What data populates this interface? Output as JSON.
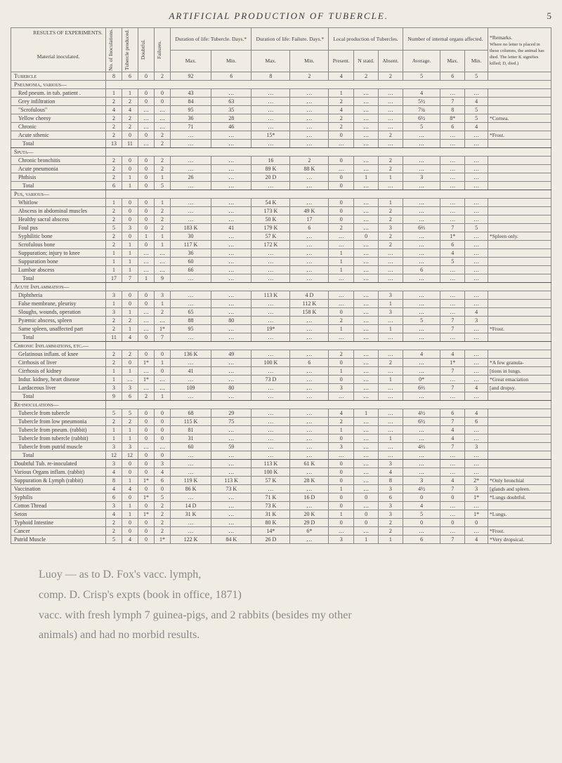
{
  "page": {
    "running_head": "ARTIFICIAL PRODUCTION OF TUBERCLE.",
    "page_number": "5",
    "table_title": "RESULTS OF EXPERIMENTS.",
    "remarks_head": "*Remarks.",
    "remarks_note": "Where no letter is placed in these columns, the animal has died. The letter K signifies killed; D, died.)"
  },
  "headers": {
    "material": "Material inoculated.",
    "inoc": "No. of Inoculations.",
    "tub": "Tubercle produced.",
    "doubt": "Doubtful.",
    "fail": "Failures.",
    "dur_tub": "Duration of life: Tubercle. Days.*",
    "dur_fail": "Duration of life: Failure. Days.*",
    "local": "Local production of Tubercles.",
    "internal": "Number of internal organs affected.",
    "max": "Max.",
    "min": "Min.",
    "present": "Present.",
    "nstat": "N statd.",
    "absent": "Absent.",
    "avg": "Average."
  },
  "rows": [
    {
      "t": "g",
      "l": "Tubercle",
      "c": [
        "8",
        "6",
        "0",
        "2",
        "92",
        "6",
        "8",
        "2",
        "4",
        "2",
        "2",
        "5",
        "6",
        "5",
        ""
      ]
    },
    {
      "t": "g",
      "l": "Pneumonia, various—"
    },
    {
      "t": "i",
      "l": "Red pneum. in tub. patient .",
      "c": [
        "1",
        "1",
        "0",
        "0",
        "43",
        "…",
        "…",
        "…",
        "1",
        "…",
        "…",
        "4",
        "…",
        "…",
        ""
      ]
    },
    {
      "t": "i",
      "l": "Grey infiltration",
      "c": [
        "2",
        "2",
        "0",
        "0",
        "84",
        "63",
        "…",
        "…",
        "2",
        "…",
        "…",
        "5½",
        "7",
        "4",
        ""
      ]
    },
    {
      "t": "i",
      "l": "\"Scrofulous\"",
      "c": [
        "4",
        "4",
        "…",
        "…",
        "95",
        "35",
        "…",
        "…",
        "4",
        "…",
        "…",
        "7¾",
        "8",
        "5",
        ""
      ]
    },
    {
      "t": "i",
      "l": "Yellow cheesy",
      "c": [
        "2",
        "2",
        "…",
        "…",
        "36",
        "28",
        "…",
        "…",
        "2",
        "…",
        "…",
        "6½",
        "8*",
        "5",
        "*Cornea."
      ]
    },
    {
      "t": "i",
      "l": "Chronic",
      "c": [
        "2",
        "2",
        "…",
        "…",
        "71",
        "46",
        "…",
        "…",
        "2",
        "…",
        "…",
        "5",
        "6",
        "4",
        ""
      ]
    },
    {
      "t": "i",
      "l": "Acute sthenic",
      "c": [
        "2",
        "0",
        "0",
        "2",
        "…",
        "…",
        "15*",
        "…",
        "0",
        "…",
        "2",
        "…",
        "…",
        "…",
        "*Frost."
      ]
    },
    {
      "t": "tot",
      "l": "Total",
      "c": [
        "13",
        "11",
        "…",
        "2",
        "…",
        "…",
        "…",
        "…",
        "…",
        "…",
        "…",
        "…",
        "…",
        "…",
        ""
      ]
    },
    {
      "t": "g",
      "l": "Sputa—"
    },
    {
      "t": "i",
      "l": "Chronic bronchitis",
      "c": [
        "2",
        "0",
        "0",
        "2",
        "…",
        "…",
        "16",
        "2",
        "0",
        "…",
        "2",
        "…",
        "…",
        "…",
        ""
      ]
    },
    {
      "t": "i",
      "l": "Acute pneumonia",
      "c": [
        "2",
        "0",
        "0",
        "2",
        "…",
        "…",
        "89 K",
        "88 K",
        "…",
        "…",
        "2",
        "…",
        "…",
        "…",
        ""
      ]
    },
    {
      "t": "i",
      "l": "Phthisis",
      "c": [
        "2",
        "1",
        "0",
        "1",
        "26",
        "…",
        "20 D",
        "…",
        "0",
        "1",
        "1",
        "3",
        "…",
        "…",
        ""
      ]
    },
    {
      "t": "tot",
      "l": "Total",
      "c": [
        "6",
        "1",
        "0",
        "5",
        "…",
        "…",
        "…",
        "…",
        "0",
        "…",
        "…",
        "…",
        "…",
        "…",
        ""
      ]
    },
    {
      "t": "g",
      "l": "Pus, various—"
    },
    {
      "t": "i",
      "l": "Whitlow",
      "c": [
        "1",
        "0",
        "0",
        "1",
        "…",
        "…",
        "54 K",
        "…",
        "0",
        "…",
        "1",
        "…",
        "…",
        "…",
        ""
      ]
    },
    {
      "t": "i",
      "l": "Abscess in abdominal muscles",
      "c": [
        "2",
        "0",
        "0",
        "2",
        "…",
        "…",
        "173 K",
        "49 K",
        "0",
        "…",
        "2",
        "…",
        "…",
        "…",
        ""
      ]
    },
    {
      "t": "i",
      "l": "Healthy sacral abscess",
      "c": [
        "2",
        "0",
        "0",
        "2",
        "…",
        "…",
        "50 K",
        "17",
        "0",
        "…",
        "2",
        "…",
        "…",
        "…",
        ""
      ]
    },
    {
      "t": "i",
      "l": "Foul pus",
      "c": [
        "5",
        "3",
        "0",
        "2",
        "183 K",
        "41",
        "179 K",
        "6",
        "2",
        "…",
        "3",
        "6⅔",
        "7",
        "5",
        ""
      ]
    },
    {
      "t": "i",
      "l": "Syphilitic bone",
      "c": [
        "2",
        "0",
        "1",
        "1",
        "30",
        "…",
        "57 K",
        "…",
        "…",
        "0",
        "2",
        "…",
        "1*",
        "…",
        "*Spleen only."
      ]
    },
    {
      "t": "i",
      "l": "Scrofulous bone",
      "c": [
        "2",
        "1",
        "0",
        "1",
        "117 K",
        "…",
        "172 K",
        "…",
        "…",
        "…",
        "2",
        "…",
        "6",
        "…",
        ""
      ]
    },
    {
      "t": "i",
      "l": "Suppuration; injury to knee",
      "c": [
        "1",
        "1",
        "…",
        "…",
        "36",
        "…",
        "…",
        "…",
        "1",
        "…",
        "…",
        "…",
        "4",
        "…",
        ""
      ]
    },
    {
      "t": "i",
      "l": "Suppuration bone",
      "c": [
        "1",
        "1",
        "…",
        "…",
        "60",
        "…",
        "…",
        "…",
        "1",
        "…",
        "…",
        "…",
        "5",
        "…",
        ""
      ]
    },
    {
      "t": "i",
      "l": "Lumbar abscess",
      "c": [
        "1",
        "1",
        "…",
        "…",
        "66",
        "…",
        "…",
        "…",
        "1",
        "…",
        "…",
        "6",
        "…",
        "…",
        ""
      ]
    },
    {
      "t": "tot",
      "l": "Total",
      "c": [
        "17",
        "7",
        "1",
        "9",
        "…",
        "…",
        "…",
        "…",
        "…",
        "…",
        "…",
        "…",
        "…",
        "…",
        ""
      ]
    },
    {
      "t": "g",
      "l": "Acute Inflammation—"
    },
    {
      "t": "i",
      "l": "Diphtheria",
      "c": [
        "3",
        "0",
        "0",
        "3",
        "…",
        "…",
        "113 K",
        "4 D",
        "…",
        "…",
        "3",
        "…",
        "…",
        "…",
        ""
      ]
    },
    {
      "t": "i",
      "l": "False membrane, pleurisy",
      "c": [
        "1",
        "0",
        "0",
        "1",
        "…",
        "…",
        "…",
        "112 K",
        "…",
        "…",
        "1",
        "…",
        "…",
        "…",
        ""
      ]
    },
    {
      "t": "i",
      "l": "Sloughs, wounds, operation",
      "c": [
        "3",
        "1",
        "…",
        "2",
        "65",
        "…",
        "…",
        "158 K",
        "0",
        "…",
        "3",
        "…",
        "…",
        "4",
        ""
      ]
    },
    {
      "t": "i",
      "l": "Pyæmic abscess, spleen",
      "c": [
        "2",
        "2",
        "…",
        "…",
        "88",
        "80",
        "…",
        "…",
        "2",
        "…",
        "…",
        "5",
        "7",
        "3",
        ""
      ]
    },
    {
      "t": "i",
      "l": "Same spleen, unaffected part",
      "c": [
        "2",
        "1",
        "…",
        "1*",
        "95",
        "…",
        "19*",
        "…",
        "1",
        "…",
        "1",
        "…",
        "7",
        "…",
        "*Frost."
      ]
    },
    {
      "t": "tot",
      "l": "Total",
      "c": [
        "11",
        "4",
        "0",
        "7",
        "…",
        "…",
        "…",
        "…",
        "…",
        "…",
        "…",
        "…",
        "…",
        "…",
        ""
      ]
    },
    {
      "t": "g",
      "l": "Chronic Inflammations, etc.—"
    },
    {
      "t": "i",
      "l": "Gelatinous inflam. of knee",
      "c": [
        "2",
        "2",
        "0",
        "0",
        "136 K",
        "49",
        "…",
        "…",
        "2",
        "…",
        "…",
        "4",
        "4",
        "…",
        ""
      ]
    },
    {
      "t": "i",
      "l": "Cirrhosis of liver",
      "c": [
        "2",
        "0",
        "1*",
        "1",
        "…",
        "…",
        "100 K",
        "6",
        "0",
        "…",
        "2",
        "…",
        "1*",
        "…",
        "*A few granula-"
      ]
    },
    {
      "t": "i",
      "l": "Cirrhosis of kidney",
      "c": [
        "1",
        "1",
        "…",
        "0",
        "41",
        "…",
        "…",
        "…",
        "1",
        "…",
        "…",
        "…",
        "7",
        "…",
        "[tions in lungs."
      ]
    },
    {
      "t": "i",
      "l": "Indur. kidney, heart disease",
      "c": [
        "1",
        "…",
        "1*",
        "…",
        "…",
        "…",
        "73 D",
        "…",
        "0",
        "…",
        "1",
        "0*",
        "…",
        "…",
        "*Great emaciation"
      ]
    },
    {
      "t": "i",
      "l": "Lardaceous liver",
      "c": [
        "3",
        "3",
        "…",
        "…",
        "109",
        "80",
        "…",
        "…",
        "3",
        "…",
        "…",
        "6⅔",
        "7",
        "4",
        "[and dropsy."
      ]
    },
    {
      "t": "tot",
      "l": "Total",
      "c": [
        "9",
        "6",
        "2",
        "1",
        "…",
        "…",
        "…",
        "…",
        "…",
        "…",
        "…",
        "…",
        "…",
        "…",
        ""
      ]
    },
    {
      "t": "g",
      "l": "Re-inoculations—"
    },
    {
      "t": "i",
      "l": "Tubercle from tubercle",
      "c": [
        "5",
        "5",
        "0",
        "0",
        "68",
        "29",
        "…",
        "…",
        "4",
        "1",
        "…",
        "4½",
        "6",
        "4",
        ""
      ]
    },
    {
      "t": "i",
      "l": "Tubercle from low pneumonia",
      "c": [
        "2",
        "2",
        "0",
        "0",
        "115 K",
        "75",
        "…",
        "…",
        "2",
        "…",
        "…",
        "6½",
        "7",
        "6",
        ""
      ]
    },
    {
      "t": "i",
      "l": "Tubercle from pneum. (rabbit)",
      "c": [
        "1",
        "1",
        "0",
        "0",
        "81",
        "…",
        "…",
        "…",
        "1",
        "…",
        "…",
        "…",
        "4",
        "…",
        ""
      ]
    },
    {
      "t": "i",
      "l": "Tubercle from tubercle (rabbit)",
      "c": [
        "1",
        "1",
        "0",
        "0",
        "31",
        "…",
        "…",
        "…",
        "0",
        "…",
        "1",
        "…",
        "4",
        "…",
        ""
      ]
    },
    {
      "t": "i",
      "l": "Tubercle from putrid muscle",
      "c": [
        "3",
        "3",
        "…",
        "…",
        "60",
        "59",
        "…",
        "…",
        "3",
        "…",
        "…",
        "4⅔",
        "7",
        "3",
        ""
      ]
    },
    {
      "t": "tot",
      "l": "Total",
      "c": [
        "12",
        "12",
        "0",
        "0",
        "…",
        "…",
        "…",
        "…",
        "…",
        "…",
        "…",
        "…",
        "…",
        "…",
        ""
      ]
    },
    {
      "t": "r",
      "l": "Doubtful Tub. re-inoculated",
      "c": [
        "3",
        "0",
        "0",
        "3",
        "…",
        "…",
        "113 K",
        "61 K",
        "0",
        "…",
        "3",
        "…",
        "…",
        "…",
        ""
      ]
    },
    {
      "t": "r",
      "l": "Various Organs inflam. (rabbit)",
      "c": [
        "4",
        "0",
        "0",
        "4",
        "…",
        "…",
        "100 K",
        "…",
        "0",
        "…",
        "4",
        "…",
        "…",
        "…",
        ""
      ]
    },
    {
      "t": "r",
      "l": "Suppuration & Lymph (rabbit)",
      "c": [
        "8",
        "1",
        "1*",
        "6",
        "119 K",
        "113 K",
        "57 K",
        "28 K",
        "0",
        "…",
        "8",
        "3",
        "4",
        "2*",
        "*Only bronchial"
      ]
    },
    {
      "t": "r",
      "l": "Vaccination",
      "c": [
        "4",
        "4",
        "0",
        "0",
        "86 K",
        "73 K",
        "…",
        "…",
        "1",
        "…",
        "3",
        "4½",
        "7",
        "3",
        "[glands and spleen."
      ]
    },
    {
      "t": "r",
      "l": "Syphilis",
      "c": [
        "6",
        "0",
        "1*",
        "5",
        "…",
        "…",
        "71 K",
        "16 D",
        "0",
        "0",
        "6",
        "0",
        "0",
        "1*",
        "*Lungs doubtful."
      ]
    },
    {
      "t": "r",
      "l": "Cotton Thread",
      "c": [
        "3",
        "1",
        "0",
        "2",
        "14 D",
        "…",
        "73 K",
        "…",
        "0",
        "…",
        "3",
        "4",
        "…",
        "…",
        ""
      ]
    },
    {
      "t": "r",
      "l": "Seton",
      "c": [
        "4",
        "1",
        "1*",
        "2",
        "31 K",
        "…",
        "31 K",
        "20 K",
        "1",
        "0",
        "3",
        "5",
        "…",
        "1*",
        "*Lungs."
      ]
    },
    {
      "t": "r",
      "l": "Typhoid Intestine",
      "c": [
        "2",
        "0",
        "0",
        "2",
        "…",
        "…",
        "80 K",
        "29 D",
        "0",
        "0",
        "2",
        "0",
        "0",
        "0",
        ""
      ]
    },
    {
      "t": "r",
      "l": "Cancer",
      "c": [
        "2",
        "0",
        "0",
        "2",
        "…",
        "…",
        "14*",
        "6*",
        "…",
        "…",
        "2",
        "…",
        "…",
        "…",
        "*Frost."
      ]
    },
    {
      "t": "r",
      "l": "Putrid Muscle",
      "c": [
        "5",
        "4",
        "0",
        "1*",
        "122 K",
        "84 K",
        "26 D",
        "…",
        "3",
        "1",
        "1",
        "6",
        "7",
        "4",
        "*Very dropsical."
      ]
    }
  ],
  "handwriting": {
    "l1": "Luoy — as to D. Fox's vacc. lymph,",
    "l2": "comp. D. Crisp's expts (book in office, 1871)",
    "l3": "vacc. with fresh lymph 7 guinea-pigs, and 2 rabbits (besides my other",
    "l4": "animals) and had no morbid results."
  }
}
